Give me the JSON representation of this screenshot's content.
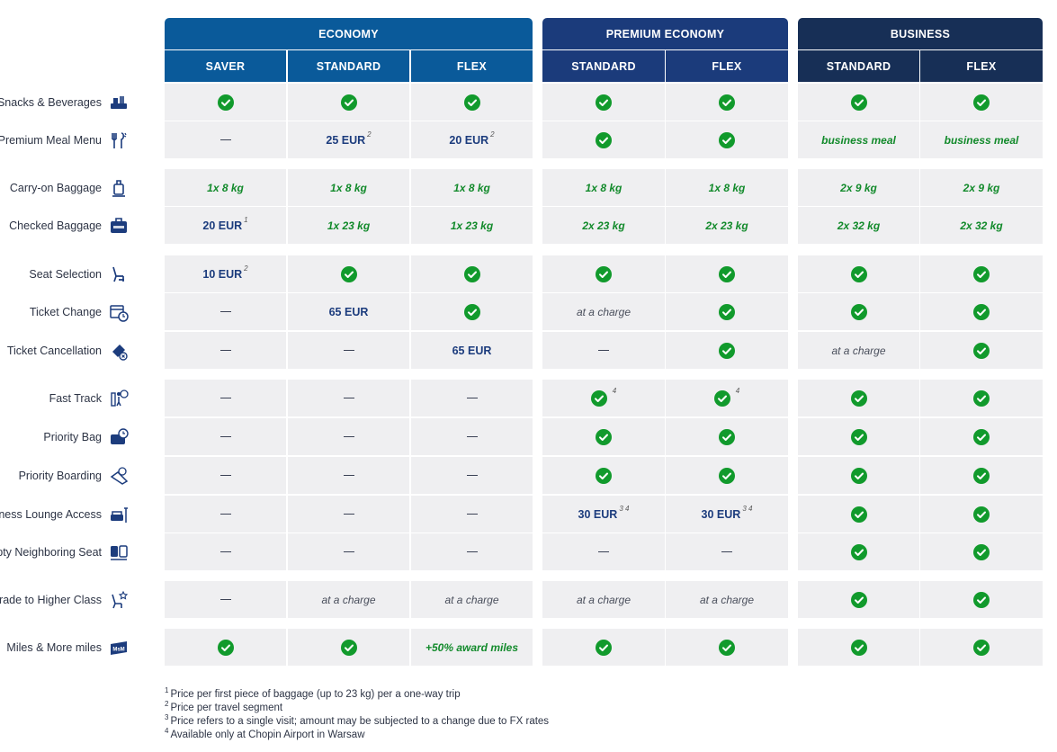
{
  "columns": {
    "groups": [
      {
        "key": "economy",
        "label": "ECONOMY",
        "color": "#0a5a9a"
      },
      {
        "key": "premium",
        "label": "PREMIUM ECONOMY",
        "color": "#1b3b7b"
      },
      {
        "key": "business",
        "label": "BUSINESS",
        "color": "#172f56"
      }
    ],
    "subcolumns": [
      {
        "label": "SAVER",
        "group": "economy"
      },
      {
        "label": "STANDARD",
        "group": "economy"
      },
      {
        "label": "FLEX",
        "group": "economy"
      },
      {
        "label": "STANDARD",
        "group": "premium"
      },
      {
        "label": "FLEX",
        "group": "premium"
      },
      {
        "label": "STANDARD",
        "group": "business"
      },
      {
        "label": "FLEX",
        "group": "business"
      }
    ]
  },
  "rows": [
    {
      "label": "Snacks & Beverages",
      "icon": "snacks-icon",
      "cells": [
        {
          "t": "check"
        },
        {
          "t": "check"
        },
        {
          "t": "check"
        },
        {
          "t": "check"
        },
        {
          "t": "check"
        },
        {
          "t": "check"
        },
        {
          "t": "check"
        }
      ]
    },
    {
      "label": "Premium Meal Menu",
      "icon": "cutlery-icon",
      "cells": [
        {
          "t": "dash"
        },
        {
          "t": "price",
          "v": "25 EUR",
          "sup": "2"
        },
        {
          "t": "price",
          "v": "20 EUR",
          "sup": "2"
        },
        {
          "t": "check"
        },
        {
          "t": "check"
        },
        {
          "t": "green",
          "v": "business meal"
        },
        {
          "t": "green",
          "v": "business meal"
        }
      ]
    },
    {
      "label": "Carry-on Baggage",
      "icon": "carry-on-icon",
      "cells": [
        {
          "t": "green",
          "v": "1x 8 kg"
        },
        {
          "t": "green",
          "v": "1x 8 kg"
        },
        {
          "t": "green",
          "v": "1x 8 kg"
        },
        {
          "t": "green",
          "v": "1x 8 kg"
        },
        {
          "t": "green",
          "v": "1x 8 kg"
        },
        {
          "t": "green",
          "v": "2x 9 kg"
        },
        {
          "t": "green",
          "v": "2x 9 kg"
        }
      ]
    },
    {
      "label": "Checked Baggage",
      "icon": "suitcase-icon",
      "cells": [
        {
          "t": "price",
          "v": "20 EUR",
          "sup": "1"
        },
        {
          "t": "green",
          "v": "1x 23 kg"
        },
        {
          "t": "green",
          "v": "1x 23 kg"
        },
        {
          "t": "green",
          "v": "2x 23 kg"
        },
        {
          "t": "green",
          "v": "2x 23 kg"
        },
        {
          "t": "green",
          "v": "2x 32 kg"
        },
        {
          "t": "green",
          "v": "2x 32 kg"
        }
      ]
    },
    {
      "label": "Seat Selection",
      "icon": "seat-icon",
      "cells": [
        {
          "t": "price",
          "v": "10 EUR",
          "sup": "2"
        },
        {
          "t": "check"
        },
        {
          "t": "check"
        },
        {
          "t": "check"
        },
        {
          "t": "check"
        },
        {
          "t": "check"
        },
        {
          "t": "check"
        }
      ]
    },
    {
      "label": "Ticket Change",
      "icon": "calendar-clock-icon",
      "cells": [
        {
          "t": "dash"
        },
        {
          "t": "price",
          "v": "65 EUR"
        },
        {
          "t": "check"
        },
        {
          "t": "charge",
          "v": "at a charge"
        },
        {
          "t": "check"
        },
        {
          "t": "check"
        },
        {
          "t": "check"
        }
      ]
    },
    {
      "label": "Ticket Cancellation",
      "icon": "ticket-cancel-icon",
      "cells": [
        {
          "t": "dash"
        },
        {
          "t": "dash"
        },
        {
          "t": "price",
          "v": "65 EUR"
        },
        {
          "t": "dash"
        },
        {
          "t": "check"
        },
        {
          "t": "charge",
          "v": "at a charge"
        },
        {
          "t": "check"
        }
      ]
    },
    {
      "label": "Fast Track",
      "icon": "fast-track-icon",
      "cells": [
        {
          "t": "dash"
        },
        {
          "t": "dash"
        },
        {
          "t": "dash"
        },
        {
          "t": "check",
          "sup": "4"
        },
        {
          "t": "check",
          "sup": "4"
        },
        {
          "t": "check"
        },
        {
          "t": "check"
        }
      ]
    },
    {
      "label": "Priority Bag",
      "icon": "priority-bag-icon",
      "cells": [
        {
          "t": "dash"
        },
        {
          "t": "dash"
        },
        {
          "t": "dash"
        },
        {
          "t": "check"
        },
        {
          "t": "check"
        },
        {
          "t": "check"
        },
        {
          "t": "check"
        }
      ]
    },
    {
      "label": "Priority Boarding",
      "icon": "priority-boarding-icon",
      "cells": [
        {
          "t": "dash"
        },
        {
          "t": "dash"
        },
        {
          "t": "dash"
        },
        {
          "t": "check"
        },
        {
          "t": "check"
        },
        {
          "t": "check"
        },
        {
          "t": "check"
        }
      ]
    },
    {
      "label": "Business Lounge Access",
      "icon": "lounge-icon",
      "cells": [
        {
          "t": "dash"
        },
        {
          "t": "dash"
        },
        {
          "t": "dash"
        },
        {
          "t": "price",
          "v": "30 EUR",
          "sup": "3 4"
        },
        {
          "t": "price",
          "v": "30 EUR",
          "sup": "3 4"
        },
        {
          "t": "check"
        },
        {
          "t": "check"
        }
      ]
    },
    {
      "label": "Empty Neighboring Seat",
      "icon": "empty-seat-icon",
      "cells": [
        {
          "t": "dash"
        },
        {
          "t": "dash"
        },
        {
          "t": "dash"
        },
        {
          "t": "dash"
        },
        {
          "t": "dash"
        },
        {
          "t": "check"
        },
        {
          "t": "check"
        }
      ]
    },
    {
      "label": "Upgrade to Higher Class",
      "icon": "upgrade-seat-icon",
      "cells": [
        {
          "t": "dash"
        },
        {
          "t": "charge",
          "v": "at a charge"
        },
        {
          "t": "charge",
          "v": "at a charge"
        },
        {
          "t": "charge",
          "v": "at a charge"
        },
        {
          "t": "charge",
          "v": "at a charge"
        },
        {
          "t": "check"
        },
        {
          "t": "check"
        }
      ]
    },
    {
      "label": "Miles & More miles",
      "icon": "miles-and-more-icon",
      "cells": [
        {
          "t": "check"
        },
        {
          "t": "check"
        },
        {
          "t": "green",
          "v": "+50% award miles"
        },
        {
          "t": "check"
        },
        {
          "t": "check"
        },
        {
          "t": "check"
        },
        {
          "t": "check"
        }
      ]
    }
  ],
  "footnotes": [
    {
      "num": "1",
      "text": "Price per first piece of baggage (up to 23 kg) per a one-way trip"
    },
    {
      "num": "2",
      "text": "Price per travel segment"
    },
    {
      "num": "3",
      "text": "Price refers to a single visit; amount may be subjected to a change due to FX rates"
    },
    {
      "num": "4",
      "text": "Available only at Chopin Airport in Warsaw"
    }
  ],
  "icon_label": "MsM",
  "brand_colors": {
    "check": "#119a2c",
    "price": "#1c3c7d",
    "green_text": "#128a2b",
    "cell_bg": "#efeff1"
  }
}
